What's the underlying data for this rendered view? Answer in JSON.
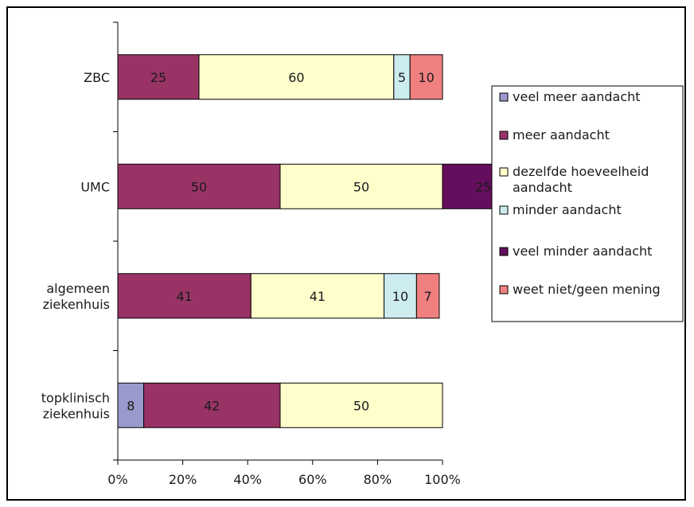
{
  "chart_data": {
    "type": "bar",
    "orientation": "horizontal",
    "stacked": "percent",
    "title": "",
    "xlabel": "",
    "ylabel": "",
    "xlim": [
      0,
      100
    ],
    "x_ticks": [
      "0%",
      "20%",
      "40%",
      "60%",
      "80%",
      "100%"
    ],
    "grid": false,
    "legend_placement": "right",
    "categories": [
      [
        "ZBC"
      ],
      [
        "UMC"
      ],
      [
        "algemeen",
        "ziekenhuis"
      ],
      [
        "topklinisch",
        "ziekenhuis"
      ]
    ],
    "series": [
      {
        "name": "veel meer aandacht",
        "legend_lines": [
          "veel meer aandacht"
        ],
        "color": "#9999cc",
        "values": [
          0,
          0,
          0,
          8
        ],
        "labels": [
          "",
          "",
          "",
          "8"
        ]
      },
      {
        "name": "meer aandacht",
        "legend_lines": [
          "meer aandacht"
        ],
        "color": "#993366",
        "values": [
          25,
          50,
          41,
          42
        ],
        "labels": [
          "25",
          "50",
          "41",
          "42"
        ]
      },
      {
        "name": "dezelfde hoeveelheid aandacht",
        "legend_lines": [
          "dezelfde hoeveelheid",
          "aandacht"
        ],
        "color": "#ffffcc",
        "values": [
          60,
          50,
          41,
          50
        ],
        "labels": [
          "60",
          "50",
          "41",
          "50"
        ]
      },
      {
        "name": "minder aandacht",
        "legend_lines": [
          "minder aandacht"
        ],
        "color": "#ccecf0",
        "values": [
          5,
          0,
          10,
          0
        ],
        "labels": [
          "5",
          "",
          "10",
          ""
        ]
      },
      {
        "name": "veel minder aandacht",
        "legend_lines": [
          "veel minder aandacht"
        ],
        "color": "#660e5e",
        "values": [
          0,
          25,
          0,
          0
        ],
        "labels": [
          "",
          "25",
          "",
          ""
        ]
      },
      {
        "name": "weet niet/geen mening",
        "legend_lines": [
          "weet niet/geen mening"
        ],
        "color": "#f08080",
        "values": [
          10,
          0,
          7,
          0
        ],
        "labels": [
          "10",
          "",
          "7",
          ""
        ]
      }
    ]
  }
}
